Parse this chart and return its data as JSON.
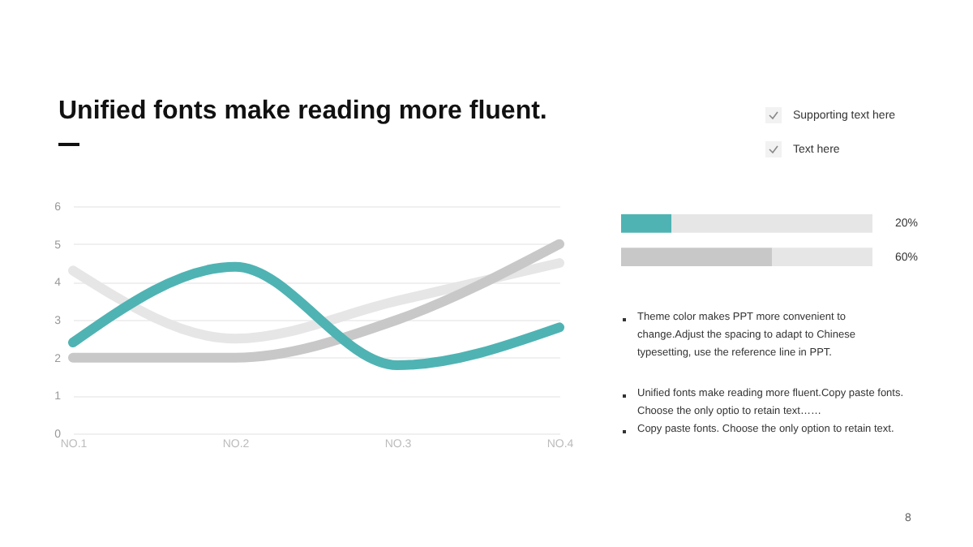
{
  "chart_data": [
    {
      "type": "line",
      "title": "Unified fonts make reading more fluent.",
      "categories": [
        "NO.1",
        "NO.2",
        "NO.3",
        "NO.4"
      ],
      "ylim": [
        0,
        6
      ],
      "yticks": [
        0,
        1,
        2,
        3,
        4,
        5,
        6
      ],
      "grid": "y",
      "legend": false,
      "marker": "none",
      "line_style": "solid",
      "series": [
        {
          "color": "#e6e6e6",
          "values": [
            4.3,
            2.5,
            3.5,
            4.5
          ]
        },
        {
          "color": "#c8c8c8",
          "values": [
            2.0,
            2.0,
            3.0,
            5.0
          ]
        },
        {
          "color": "#4fb3b3",
          "values": [
            2.4,
            4.4,
            1.8,
            2.8
          ]
        }
      ]
    },
    {
      "type": "bar",
      "orientation": "horizontal",
      "stacked": true,
      "categories": [
        null,
        null
      ],
      "xlim": [
        0,
        100
      ],
      "legend": false,
      "series": [
        {
          "colors": [
            "#4fb3b3",
            "#c8c8c8"
          ],
          "values": [
            20,
            60
          ],
          "value_labels": [
            "20%",
            "60%"
          ]
        },
        {
          "color": "#e6e6e6",
          "values": [
            80,
            40
          ]
        }
      ]
    },
    {
      "type": "other",
      "annotations": [
        "Supporting text here",
        "Text here",
        "Theme  color makes PPT more convenient to change.Adjust the spacing to adapt to Chinese typesetting, use the reference line in PPT.",
        "Unified fonts make reading more fluent.Copy paste fonts. Choose the only optio to retain text……",
        "Copy paste  fonts. Choose the only option to retain text.",
        "8"
      ]
    }
  ]
}
